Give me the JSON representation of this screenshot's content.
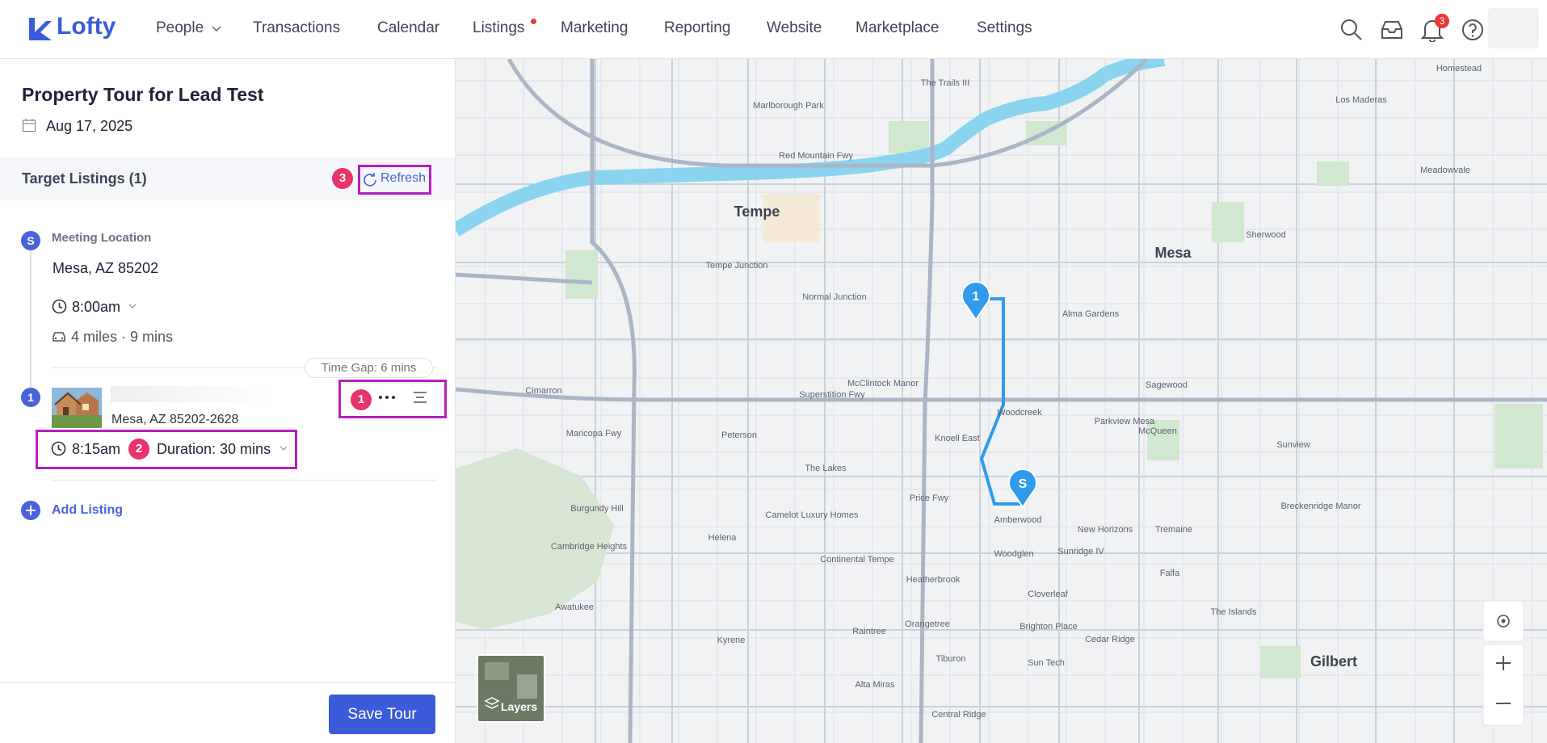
{
  "header": {
    "logo": "Lofty",
    "nav": [
      "People",
      "Transactions",
      "Calendar",
      "Listings",
      "Marketing",
      "Reporting",
      "Website",
      "Marketplace",
      "Settings"
    ],
    "notification_count": "3"
  },
  "tour": {
    "title": "Property Tour for Lead Test",
    "date": "Aug 17, 2025"
  },
  "target_listings": {
    "heading": "Target Listings (1)",
    "annotation": "3",
    "refresh": "Refresh"
  },
  "meeting": {
    "marker": "S",
    "label": "Meeting Location",
    "address": "Mesa, AZ 85202",
    "time": "8:00am",
    "travel": "4 miles · 9 mins",
    "time_gap": "Time Gap: 6 mins"
  },
  "listings": [
    {
      "marker": "1",
      "address": "Mesa, AZ 85202-2628",
      "time": "8:15am",
      "duration": "Duration: 30 mins",
      "annotations": [
        "1",
        "2"
      ]
    }
  ],
  "add_listing": "Add Listing",
  "save": "Save Tour",
  "map": {
    "labels": [
      "Tempe",
      "Mesa",
      "Gilbert",
      "Tempe Junction",
      "Normal Junction",
      "McClintock Manor",
      "Knoell East",
      "The Lakes",
      "Peterson",
      "Cimarron",
      "Helena",
      "Continental Tempe",
      "Heatherbrook",
      "Orangetree",
      "Alma Gardens",
      "Parkview Mesa",
      "Sagewood",
      "McQueen",
      "Woodcreek",
      "Amberwood",
      "New Horizons",
      "Woodglen",
      "Sunridge IV",
      "Cloverleaf",
      "Brighton Place",
      "Sun Tech",
      "Cedar Ridge",
      "The Islands",
      "Tremaine",
      "Falfa",
      "Kyrene",
      "Raintree",
      "Tiburon",
      "Alta Miras",
      "Central Ridge",
      "Awatukee",
      "Cambridge Heights",
      "Burgundy Hill",
      "Camelot Luxury Homes",
      "Marlborough Park",
      "The Trails III",
      "Sherwood",
      "Meadowvale",
      "Sunview",
      "Breckenridge Manor",
      "Homestead",
      "Los Maderas",
      "Superstition Fwy",
      "Red Mountain Fwy",
      "Price Fwy",
      "Maricopa Fwy"
    ],
    "markers": [
      "1",
      "S"
    ],
    "layers": "Layers"
  }
}
